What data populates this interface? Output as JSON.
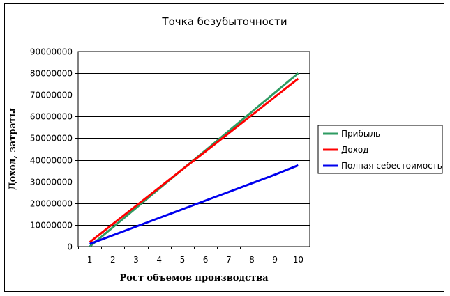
{
  "chart_data": {
    "type": "line",
    "title": "Точка безубыточности",
    "xlabel": "Рост объемов производства",
    "ylabel": "Доход, затраты",
    "categories": [
      "1",
      "2",
      "3",
      "4",
      "5",
      "6",
      "7",
      "8",
      "9",
      "10"
    ],
    "ylim": [
      0,
      90000000
    ],
    "yticks": [
      "0",
      "10000000",
      "20000000",
      "30000000",
      "40000000",
      "50000000",
      "60000000",
      "70000000",
      "80000000",
      "90000000"
    ],
    "grid": true,
    "legend_position": "right",
    "series": [
      {
        "name": "Прибыль",
        "color": "#2e9b62",
        "values": [
          0,
          8900000,
          17800000,
          26700000,
          35600000,
          44400000,
          53300000,
          62200000,
          71100000,
          80000000
        ]
      },
      {
        "name": "Доход",
        "color": "#ff0000",
        "values": [
          2000000,
          10400000,
          18800000,
          27200000,
          35600000,
          43900000,
          52300000,
          60700000,
          69100000,
          77500000
        ]
      },
      {
        "name": "Полная себестоимость",
        "color": "#0000ee",
        "values": [
          1200000,
          5200000,
          9200000,
          13200000,
          17200000,
          21200000,
          25200000,
          29200000,
          33200000,
          37500000
        ]
      }
    ]
  }
}
